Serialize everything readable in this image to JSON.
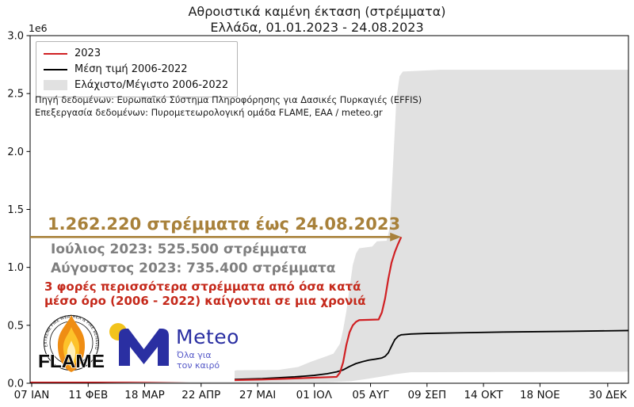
{
  "title": {
    "line1": "Αθροιστικά καμένη έκταση (στρέμματα)",
    "line2": "Ελλάδα, 01.01.2023 - 24.08.2023"
  },
  "legend": {
    "items": [
      {
        "label": "2023",
        "type": "line",
        "color": "#d02023"
      },
      {
        "label": "Μέση τιμή 2006-2022",
        "type": "line",
        "color": "#000000"
      },
      {
        "label": "Ελάχιστο/Μέγιστο 2006-2022",
        "type": "patch",
        "color": "#e1e1e1"
      }
    ]
  },
  "source": {
    "line1": "Πηγή δεδομένων: Ευρωπαϊκό Σύστημα Πληροφόρησης για Δασικές Πυρκαγιές (EFFIS)",
    "line2": "Επεξεργασία δεδομένων: Πυρομετεωρολογική ομάδα FLAME, ΕΑΑ / meteo.gr"
  },
  "annotations": {
    "headline": "1.262.220 στρέμματα έως 24.08.2023",
    "headline_color": "#a8813a",
    "july": "Ιούλιος 2023: 525.500 στρέμματα",
    "august": "Αύγουστος 2023: 735.400 στρέμματα",
    "monthly_color": "#7f7f7f",
    "note_line1": "3 φορές περισσότερα στρέμματα από όσα κατά",
    "note_line2": "μέσο όρο (2006 - 2022) καίγονται σε μια χρονιά",
    "note_color": "#c5291b"
  },
  "logos": {
    "flame": {
      "name": "FLAME",
      "ring_text": "EXTREME FIRE WEATHER & FIRE BEHAVIOUR"
    },
    "meteo": {
      "name": "Meteo",
      "tagline_line1": "Όλα για",
      "tagline_line2": "τον καιρό",
      "blue": "#2a2fa2",
      "yellow": "#f2c31c",
      "tagline_color": "#5559c8"
    }
  },
  "chart_data": {
    "type": "line",
    "title": "Αθροιστικά καμένη έκταση (στρέμματα) — Ελλάδα, 01.01.2023 - 24.08.2023",
    "xlabel": "",
    "ylabel": "",
    "y_multiplier_label": "1e6",
    "y_units": "millions of στρέμματα",
    "ylim": [
      0.0,
      3.0
    ],
    "grid": false,
    "legend_position": "upper-left",
    "y_ticks": [
      0.0,
      0.5,
      1.0,
      1.5,
      2.0,
      2.5,
      3.0
    ],
    "x_ticks": [
      {
        "day": 7,
        "label": "07 ΙΑΝ"
      },
      {
        "day": 42,
        "label": "11 ΦΕΒ"
      },
      {
        "day": 77,
        "label": "18 ΜΑΡ"
      },
      {
        "day": 112,
        "label": "22 ΑΠΡ"
      },
      {
        "day": 147,
        "label": "27 ΜΑΙ"
      },
      {
        "day": 182,
        "label": "01 ΙΟΛ"
      },
      {
        "day": 217,
        "label": "05 ΑΥΓ"
      },
      {
        "day": 252,
        "label": "09 ΣΕΠ"
      },
      {
        "day": 287,
        "label": "14 ΟΚΤ"
      },
      {
        "day": 322,
        "label": "18 ΝΟΕ"
      },
      {
        "day": 364,
        "label": "30 ΔΕΚ"
      }
    ],
    "series": [
      {
        "name": "2023",
        "color": "#d02023",
        "width": 2.2,
        "points": [
          [
            6,
            0.006
          ],
          [
            40,
            0.01
          ],
          [
            80,
            0.016
          ],
          [
            120,
            0.024
          ],
          [
            150,
            0.032
          ],
          [
            170,
            0.042
          ],
          [
            186,
            0.05
          ],
          [
            196,
            0.055
          ],
          [
            198,
            0.09
          ],
          [
            200,
            0.18
          ],
          [
            202,
            0.33
          ],
          [
            204,
            0.44
          ],
          [
            206,
            0.5
          ],
          [
            208,
            0.53
          ],
          [
            210,
            0.545
          ],
          [
            222,
            0.55
          ],
          [
            224,
            0.61
          ],
          [
            226,
            0.73
          ],
          [
            228,
            0.9
          ],
          [
            230,
            1.04
          ],
          [
            232,
            1.13
          ],
          [
            234,
            1.2
          ],
          [
            236,
            1.262
          ]
        ]
      },
      {
        "name": "Μέση τιμή 2006-2022",
        "color": "#000000",
        "width": 1.8,
        "points": [
          [
            6,
            0.004
          ],
          [
            40,
            0.01
          ],
          [
            80,
            0.018
          ],
          [
            120,
            0.028
          ],
          [
            150,
            0.04
          ],
          [
            170,
            0.055
          ],
          [
            182,
            0.068
          ],
          [
            190,
            0.082
          ],
          [
            196,
            0.098
          ],
          [
            200,
            0.115
          ],
          [
            204,
            0.145
          ],
          [
            208,
            0.17
          ],
          [
            212,
            0.186
          ],
          [
            216,
            0.2
          ],
          [
            220,
            0.208
          ],
          [
            224,
            0.218
          ],
          [
            226,
            0.232
          ],
          [
            228,
            0.262
          ],
          [
            230,
            0.32
          ],
          [
            232,
            0.375
          ],
          [
            234,
            0.405
          ],
          [
            236,
            0.418
          ],
          [
            242,
            0.425
          ],
          [
            252,
            0.43
          ],
          [
            270,
            0.435
          ],
          [
            300,
            0.442
          ],
          [
            340,
            0.448
          ],
          [
            377,
            0.455
          ]
        ]
      }
    ],
    "band": {
      "name": "Ελάχιστο/Μέγιστο 2006-2022",
      "color": "#e1e1e1",
      "max": [
        [
          6,
          0.01
        ],
        [
          40,
          0.022
        ],
        [
          80,
          0.042
        ],
        [
          110,
          0.062
        ],
        [
          126,
          0.085
        ],
        [
          134,
          0.112
        ],
        [
          160,
          0.115
        ],
        [
          172,
          0.14
        ],
        [
          180,
          0.185
        ],
        [
          188,
          0.225
        ],
        [
          194,
          0.255
        ],
        [
          198,
          0.34
        ],
        [
          200,
          0.46
        ],
        [
          202,
          0.62
        ],
        [
          204,
          0.82
        ],
        [
          206,
          1.02
        ],
        [
          208,
          1.12
        ],
        [
          210,
          1.165
        ],
        [
          218,
          1.18
        ],
        [
          221,
          1.225
        ],
        [
          227,
          1.23
        ],
        [
          229,
          1.35
        ],
        [
          231,
          1.9
        ],
        [
          233,
          2.45
        ],
        [
          235,
          2.65
        ],
        [
          237,
          2.69
        ],
        [
          260,
          2.705
        ],
        [
          377,
          2.705
        ]
      ],
      "min": [
        [
          6,
          0.001
        ],
        [
          150,
          0.004
        ],
        [
          190,
          0.008
        ],
        [
          205,
          0.018
        ],
        [
          215,
          0.038
        ],
        [
          224,
          0.058
        ],
        [
          232,
          0.078
        ],
        [
          242,
          0.095
        ],
        [
          377,
          0.1
        ]
      ]
    },
    "arrow": {
      "value": 1.26222,
      "to_day": 236,
      "color": "#a8813a"
    }
  }
}
